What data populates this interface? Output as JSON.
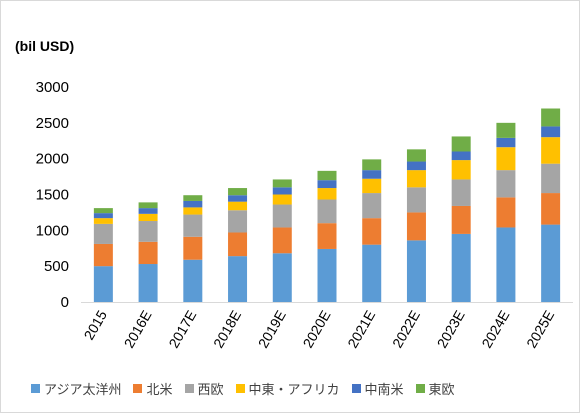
{
  "chart_data": {
    "type": "bar",
    "stacked": true,
    "ylabel": "(bil USD)",
    "ylim": [
      0,
      3000
    ],
    "yticks": [
      0,
      500,
      1000,
      1500,
      2000,
      2500,
      3000
    ],
    "ytick_labels": [
      "0",
      "500",
      "1000",
      "1500",
      "2000",
      "2500",
      "3000"
    ],
    "categories": [
      "2015",
      "2016E",
      "2017E",
      "2018E",
      "2019E",
      "2020E",
      "2021E",
      "2022E",
      "2023E",
      "2024E",
      "2025E"
    ],
    "series": [
      {
        "name": "アジア太洋州",
        "color": "#5b9bd5",
        "values": [
          500,
          530,
          590,
          640,
          680,
          740,
          800,
          860,
          950,
          1040,
          1080
        ]
      },
      {
        "name": "北米",
        "color": "#ed7d31",
        "values": [
          310,
          310,
          320,
          330,
          360,
          360,
          370,
          390,
          390,
          420,
          440
        ]
      },
      {
        "name": "西欧",
        "color": "#a5a5a5",
        "values": [
          280,
          290,
          310,
          310,
          320,
          330,
          350,
          350,
          370,
          380,
          410
        ]
      },
      {
        "name": "中東・アフリカ",
        "color": "#ffc000",
        "values": [
          80,
          100,
          100,
          120,
          140,
          160,
          200,
          240,
          270,
          320,
          370
        ]
      },
      {
        "name": "中南米",
        "color": "#4472c4",
        "values": [
          70,
          80,
          90,
          90,
          100,
          110,
          120,
          120,
          120,
          130,
          150
        ]
      },
      {
        "name": "東欧",
        "color": "#70ad47",
        "values": [
          70,
          80,
          80,
          100,
          110,
          130,
          150,
          170,
          210,
          210,
          250
        ]
      }
    ],
    "grid": false,
    "legend_position": "bottom"
  }
}
